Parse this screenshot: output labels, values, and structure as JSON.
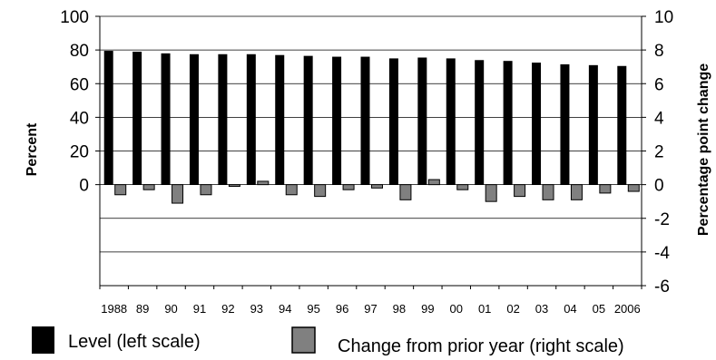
{
  "chart_data": {
    "type": "bar",
    "categories": [
      "1988",
      "89",
      "90",
      "91",
      "92",
      "93",
      "94",
      "95",
      "96",
      "97",
      "98",
      "99",
      "00",
      "01",
      "02",
      "03",
      "04",
      "05",
      "2006"
    ],
    "series": [
      {
        "name": "Level (left scale)",
        "axis": "left",
        "color": "#000000",
        "values": [
          79.5,
          79.0,
          78.0,
          77.5,
          77.5,
          77.5,
          77.0,
          76.5,
          76.0,
          76.0,
          75.0,
          75.5,
          75.0,
          74.0,
          73.5,
          72.5,
          71.5,
          71.0,
          70.5
        ]
      },
      {
        "name": "Change from prior year (right scale)",
        "axis": "right",
        "color": "#808080",
        "values": [
          -0.6,
          -0.3,
          -1.1,
          -0.6,
          -0.1,
          0.2,
          -0.6,
          -0.7,
          -0.3,
          -0.2,
          -0.9,
          0.3,
          -0.3,
          -1.0,
          -0.7,
          -0.9,
          -0.9,
          -0.5,
          -0.4
        ]
      }
    ],
    "left_axis": {
      "label": "Percent",
      "ylim": [
        -60,
        100
      ],
      "ticks": [
        0,
        20,
        40,
        60,
        80,
        100
      ]
    },
    "right_axis": {
      "label": "Percentage point change",
      "ylim": [
        -6,
        10
      ],
      "ticks": [
        -6,
        -4,
        -2,
        0,
        2,
        4,
        6,
        8,
        10
      ]
    },
    "grid": true,
    "legend": "bottom"
  }
}
